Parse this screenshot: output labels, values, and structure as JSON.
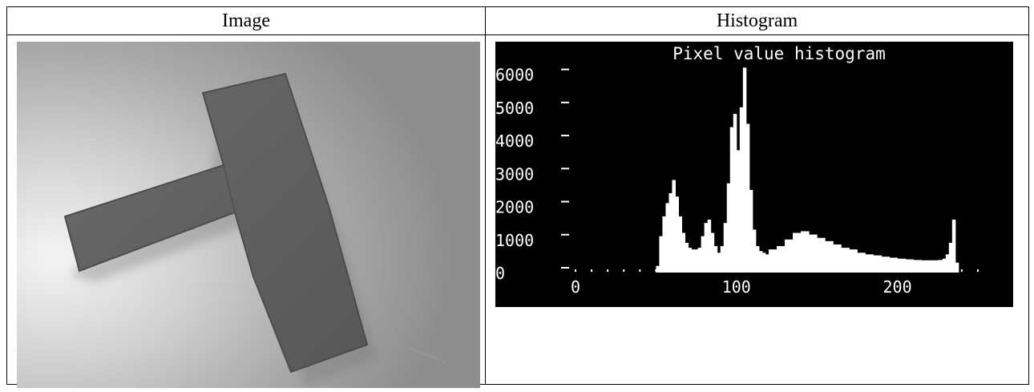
{
  "table": {
    "col1_header": "Image",
    "col2_header": "Histogram"
  },
  "image": {
    "description_icon": "grayscale-photo-t-shaped-object"
  },
  "chart_data": {
    "type": "bar",
    "title": "Pixel value histogram",
    "xlabel": "",
    "ylabel": "",
    "xlim": [
      0,
      255
    ],
    "ylim": [
      0,
      6500
    ],
    "xticks": [
      0,
      100,
      200
    ],
    "yticks": [
      0,
      1000,
      2000,
      3000,
      4000,
      5000,
      6000
    ],
    "bar_color": "#ffffff",
    "background": "#000000",
    "x": [
      50,
      52,
      54,
      56,
      58,
      60,
      62,
      64,
      66,
      68,
      70,
      72,
      74,
      76,
      78,
      80,
      82,
      84,
      86,
      88,
      90,
      92,
      94,
      96,
      98,
      100,
      102,
      104,
      106,
      108,
      110,
      112,
      114,
      116,
      118,
      120,
      125,
      130,
      135,
      140,
      145,
      150,
      155,
      160,
      165,
      170,
      175,
      180,
      185,
      190,
      195,
      200,
      205,
      210,
      215,
      220,
      225,
      228,
      230,
      232,
      234,
      236
    ],
    "values": [
      200,
      1100,
      1700,
      2100,
      2400,
      2800,
      2300,
      1700,
      1200,
      900,
      750,
      700,
      700,
      750,
      1100,
      1500,
      1600,
      1200,
      800,
      600,
      800,
      1500,
      2700,
      4400,
      4800,
      3700,
      5000,
      6200,
      4500,
      2500,
      1300,
      800,
      650,
      600,
      550,
      700,
      800,
      1000,
      1200,
      1250,
      1150,
      1050,
      950,
      850,
      750,
      700,
      600,
      550,
      520,
      480,
      450,
      420,
      400,
      380,
      370,
      370,
      380,
      420,
      550,
      900,
      1600,
      300
    ]
  }
}
